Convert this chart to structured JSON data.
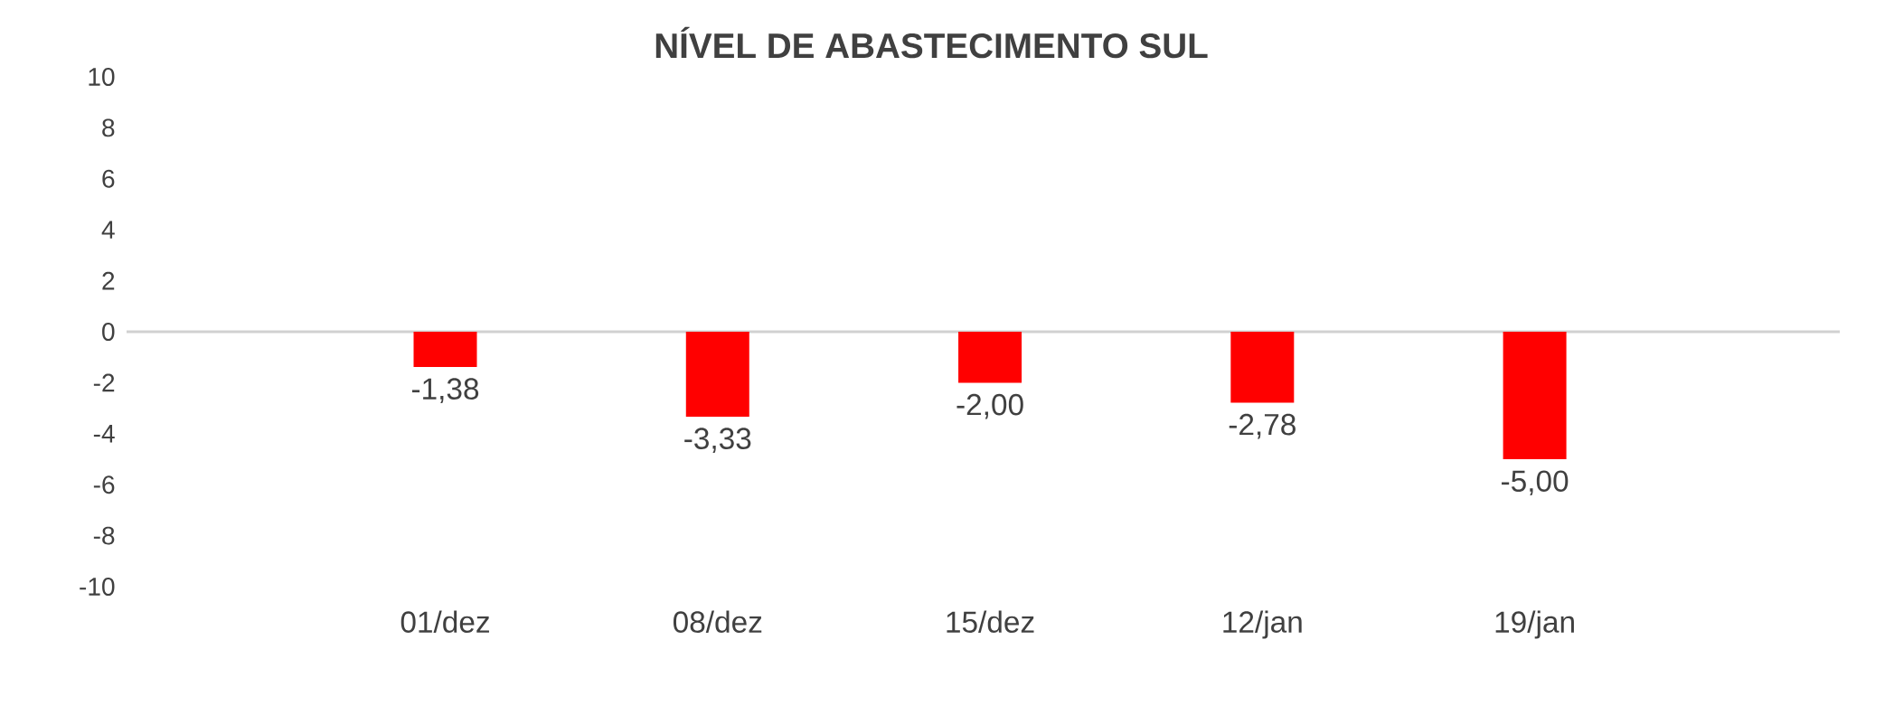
{
  "chart_data": {
    "type": "bar",
    "title": "NÍVEL DE ABASTECIMENTO SUL",
    "categories": [
      "01/dez",
      "08/dez",
      "15/dez",
      "12/jan",
      "19/jan"
    ],
    "values": [
      -1.38,
      -3.33,
      -2.0,
      -2.78,
      -5.0
    ],
    "value_labels": [
      "-1,38",
      "-3,33",
      "-2,00",
      "-2,78",
      "-5,00"
    ],
    "color": "#ff0000",
    "ylim": [
      -10,
      10
    ],
    "yticks": [
      -10,
      -8,
      -6,
      -4,
      -2,
      0,
      2,
      4,
      6,
      8,
      10
    ]
  }
}
